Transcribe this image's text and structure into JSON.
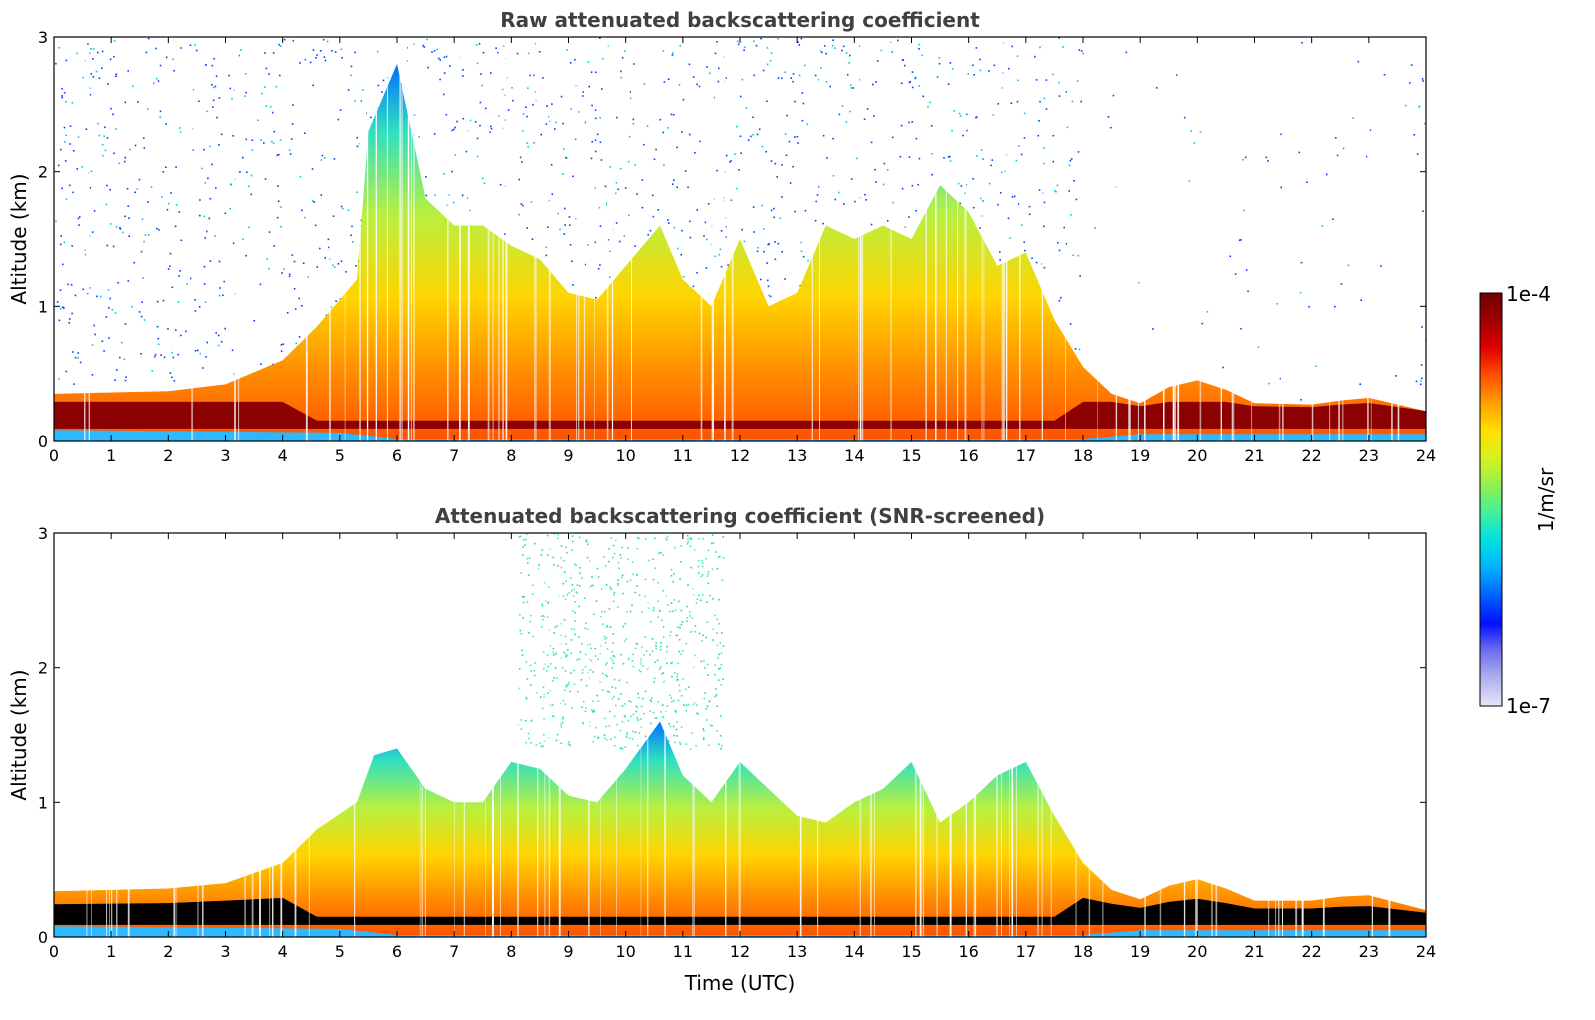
{
  "chart_data": [
    {
      "type": "heatmap",
      "title": "Raw attenuated backscattering coefficient",
      "xlabel": "",
      "ylabel": "Altitude (km)",
      "xlim": [
        0,
        24
      ],
      "ylim": [
        0,
        3
      ],
      "xticks": [
        "0",
        "1",
        "2",
        "3",
        "4",
        "5",
        "6",
        "7",
        "8",
        "9",
        "10",
        "11",
        "12",
        "13",
        "14",
        "15",
        "16",
        "17",
        "18",
        "19",
        "20",
        "21",
        "22",
        "23",
        "24"
      ],
      "yticks": [
        "0",
        "1",
        "2",
        "3"
      ],
      "color_scale": "log",
      "value_range": [
        1e-07,
        0.0001
      ],
      "boundary_layer_top_km": [
        [
          0,
          0.35
        ],
        [
          2,
          0.37
        ],
        [
          3,
          0.42
        ],
        [
          4,
          0.6
        ],
        [
          4.6,
          0.85
        ],
        [
          5.3,
          1.2
        ],
        [
          5.5,
          2.3
        ],
        [
          6,
          2.8
        ],
        [
          6.5,
          1.8
        ],
        [
          7,
          1.6
        ],
        [
          7.5,
          1.6
        ],
        [
          8,
          1.45
        ],
        [
          8.5,
          1.35
        ],
        [
          9,
          1.1
        ],
        [
          9.5,
          1.05
        ],
        [
          10,
          1.3
        ],
        [
          10.6,
          1.6
        ],
        [
          11,
          1.2
        ],
        [
          11.5,
          1.0
        ],
        [
          12,
          1.5
        ],
        [
          12.5,
          1.0
        ],
        [
          13,
          1.1
        ],
        [
          13.5,
          1.6
        ],
        [
          14,
          1.5
        ],
        [
          14.5,
          1.6
        ],
        [
          15,
          1.5
        ],
        [
          15.5,
          1.9
        ],
        [
          16,
          1.7
        ],
        [
          16.5,
          1.3
        ],
        [
          17,
          1.4
        ],
        [
          17.5,
          0.9
        ],
        [
          18,
          0.55
        ],
        [
          18.5,
          0.35
        ],
        [
          19,
          0.28
        ],
        [
          19.5,
          0.4
        ],
        [
          20,
          0.45
        ],
        [
          20.5,
          0.38
        ],
        [
          21,
          0.28
        ],
        [
          22,
          0.27
        ],
        [
          22.5,
          0.3
        ],
        [
          23,
          0.32
        ],
        [
          24,
          0.22
        ]
      ]
    },
    {
      "type": "heatmap",
      "title": "Attenuated backscattering coefficient (SNR-screened)",
      "xlabel": "Time (UTC)",
      "ylabel": "Altitude (km)",
      "xlim": [
        0,
        24
      ],
      "ylim": [
        0,
        3
      ],
      "xticks": [
        "0",
        "1",
        "2",
        "3",
        "4",
        "5",
        "6",
        "7",
        "8",
        "9",
        "10",
        "11",
        "12",
        "13",
        "14",
        "15",
        "16",
        "17",
        "18",
        "19",
        "20",
        "21",
        "22",
        "23",
        "24"
      ],
      "yticks": [
        "0",
        "1",
        "2",
        "3"
      ],
      "color_scale": "log",
      "value_range": [
        1e-07,
        0.0001
      ],
      "boundary_layer_top_km": [
        [
          0,
          0.34
        ],
        [
          2,
          0.36
        ],
        [
          3,
          0.4
        ],
        [
          4,
          0.55
        ],
        [
          4.6,
          0.8
        ],
        [
          5.3,
          1.0
        ],
        [
          5.6,
          1.35
        ],
        [
          6,
          1.4
        ],
        [
          6.5,
          1.1
        ],
        [
          7,
          1.0
        ],
        [
          7.5,
          1.0
        ],
        [
          8,
          1.3
        ],
        [
          8.5,
          1.25
        ],
        [
          9,
          1.05
        ],
        [
          9.5,
          1.0
        ],
        [
          10,
          1.25
        ],
        [
          10.6,
          1.6
        ],
        [
          11,
          1.2
        ],
        [
          11.5,
          1.0
        ],
        [
          12,
          1.3
        ],
        [
          12.5,
          1.1
        ],
        [
          13,
          0.9
        ],
        [
          13.5,
          0.85
        ],
        [
          14,
          1.0
        ],
        [
          14.5,
          1.1
        ],
        [
          15,
          1.3
        ],
        [
          15.5,
          0.85
        ],
        [
          16,
          1.0
        ],
        [
          16.5,
          1.2
        ],
        [
          17,
          1.3
        ],
        [
          17.5,
          0.9
        ],
        [
          18,
          0.55
        ],
        [
          18.5,
          0.35
        ],
        [
          19,
          0.28
        ],
        [
          19.5,
          0.38
        ],
        [
          20,
          0.43
        ],
        [
          20.5,
          0.36
        ],
        [
          21,
          0.27
        ],
        [
          22,
          0.27
        ],
        [
          22.5,
          0.3
        ],
        [
          23,
          0.31
        ],
        [
          24,
          0.2
        ]
      ]
    }
  ],
  "colorbar": {
    "label": "1/m/sr",
    "max_label": "1e-4",
    "min_label": "1e-7",
    "colors": [
      "#e6e6f8",
      "#b0b0f0",
      "#7070f0",
      "#0010ff",
      "#0060ff",
      "#00b0ff",
      "#00e0e0",
      "#40f0a0",
      "#90f050",
      "#d8f020",
      "#ffe000",
      "#ffa000",
      "#ff5000",
      "#e00000",
      "#a00000",
      "#700000"
    ]
  }
}
